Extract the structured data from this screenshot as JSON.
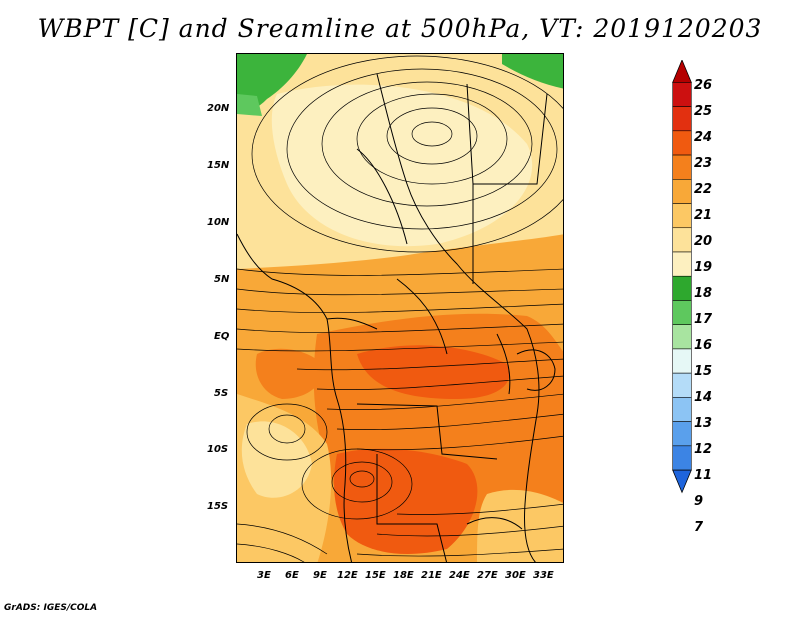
{
  "title": "WBPT [C] and Sreamline at 500hPa, VT: 2019120203",
  "credit": "GrADS: IGES/COLA",
  "map": {
    "variable": "Wet-bulb potential temperature",
    "level": "500hPa",
    "region": "Africa",
    "lat_ticks": [
      "20N",
      "15N",
      "10N",
      "5N",
      "EQ",
      "5S",
      "10S",
      "15S"
    ],
    "lon_ticks": [
      "3E",
      "6E",
      "9E",
      "12E",
      "15E",
      "18E",
      "21E",
      "24E",
      "27E",
      "30E",
      "33E"
    ]
  },
  "colorbar": {
    "labels": [
      "26",
      "25",
      "24",
      "23",
      "22",
      "21",
      "20",
      "19",
      "18",
      "17",
      "16",
      "15",
      "14",
      "13",
      "12",
      "11",
      "9",
      "7"
    ],
    "colors": [
      "#b40000",
      "#cc1010",
      "#e23010",
      "#f05a10",
      "#f4801c",
      "#f8a838",
      "#fcc864",
      "#fde29a",
      "#fdf0c0",
      "#2ea82e",
      "#5ec85e",
      "#a8e4a0",
      "#e6f8f6",
      "#b4dcf8",
      "#8cc4f4",
      "#5aa0ec",
      "#3c84e4",
      "#1e64dc"
    ]
  }
}
